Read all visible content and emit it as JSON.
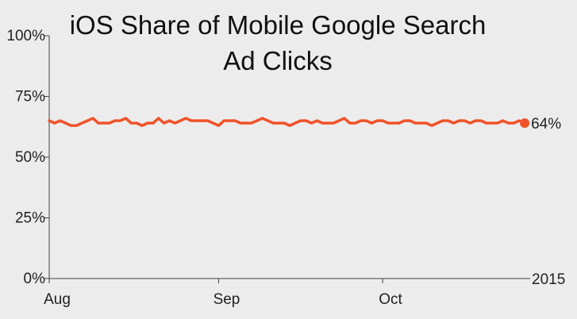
{
  "chart_data": {
    "type": "line",
    "title": [
      "iOS Share of Mobile Google Search",
      "Ad Clicks"
    ],
    "xlabel": "",
    "ylabel": "",
    "y_ticks": [
      "0%",
      "25%",
      "50%",
      "75%",
      "100%"
    ],
    "ylim": [
      0,
      100
    ],
    "x_ticks": [
      "Aug",
      "Sep",
      "Oct"
    ],
    "x_tick_dates": [
      "2015-08-01",
      "2015-09-01",
      "2015-10-01"
    ],
    "x_range": [
      "2015-08-01",
      "2015-10-28"
    ],
    "year_label": "2015",
    "grid": false,
    "legend": "none",
    "end_label": "64%",
    "line_color": "#f0532a",
    "series": [
      {
        "x": [
          "2015-08-01",
          "2015-08-02",
          "2015-08-03",
          "2015-08-04",
          "2015-08-05",
          "2015-08-06",
          "2015-08-07",
          "2015-08-08",
          "2015-08-09",
          "2015-08-10",
          "2015-08-11",
          "2015-08-12",
          "2015-08-13",
          "2015-08-14",
          "2015-08-15",
          "2015-08-16",
          "2015-08-17",
          "2015-08-18",
          "2015-08-19",
          "2015-08-20",
          "2015-08-21",
          "2015-08-22",
          "2015-08-23",
          "2015-08-24",
          "2015-08-25",
          "2015-08-26",
          "2015-08-27",
          "2015-08-28",
          "2015-08-29",
          "2015-08-30",
          "2015-08-31",
          "2015-09-01",
          "2015-09-02",
          "2015-09-03",
          "2015-09-04",
          "2015-09-05",
          "2015-09-06",
          "2015-09-07",
          "2015-09-08",
          "2015-09-09",
          "2015-09-10",
          "2015-09-11",
          "2015-09-12",
          "2015-09-13",
          "2015-09-14",
          "2015-09-15",
          "2015-09-16",
          "2015-09-17",
          "2015-09-18",
          "2015-09-19",
          "2015-09-20",
          "2015-09-21",
          "2015-09-22",
          "2015-09-23",
          "2015-09-24",
          "2015-09-25",
          "2015-09-26",
          "2015-09-27",
          "2015-09-28",
          "2015-09-29",
          "2015-09-30",
          "2015-10-01",
          "2015-10-02",
          "2015-10-03",
          "2015-10-04",
          "2015-10-05",
          "2015-10-06",
          "2015-10-07",
          "2015-10-08",
          "2015-10-09",
          "2015-10-10",
          "2015-10-11",
          "2015-10-12",
          "2015-10-13",
          "2015-10-14",
          "2015-10-15",
          "2015-10-16",
          "2015-10-17",
          "2015-10-18",
          "2015-10-19",
          "2015-10-20",
          "2015-10-21",
          "2015-10-22",
          "2015-10-23",
          "2015-10-24",
          "2015-10-25",
          "2015-10-26",
          "2015-10-27"
        ],
        "values": [
          65,
          64,
          65,
          64,
          63,
          63,
          64,
          65,
          66,
          64,
          64,
          64,
          65,
          65,
          66,
          64,
          64,
          63,
          64,
          64,
          66,
          64,
          65,
          64,
          65,
          66,
          65,
          65,
          65,
          65,
          64,
          63,
          65,
          65,
          65,
          64,
          64,
          64,
          65,
          66,
          65,
          64,
          64,
          64,
          63,
          64,
          65,
          65,
          64,
          65,
          64,
          64,
          64,
          65,
          66,
          64,
          64,
          65,
          65,
          64,
          65,
          65,
          64,
          64,
          64,
          65,
          65,
          64,
          64,
          64,
          63,
          64,
          65,
          65,
          64,
          65,
          65,
          64,
          65,
          65,
          64,
          64,
          64,
          65,
          64,
          64,
          65,
          64
        ]
      }
    ]
  }
}
